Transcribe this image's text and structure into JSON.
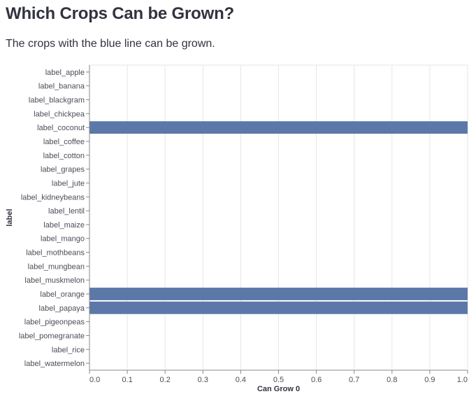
{
  "header": {
    "title": "Which Crops Can be Grown?",
    "subtitle": "The crops with the blue line can be grown."
  },
  "colors": {
    "bar": "#5b78a8",
    "grid": "#e6e6e6",
    "axis": "#888888",
    "text": "#31333f"
  },
  "chart_data": {
    "type": "bar",
    "orientation": "horizontal",
    "title": "",
    "xlabel": "Can Grow 0",
    "ylabel": "label",
    "xlim": [
      0,
      1
    ],
    "x_ticks": [
      "0.0",
      "0.1",
      "0.2",
      "0.3",
      "0.4",
      "0.5",
      "0.6",
      "0.7",
      "0.8",
      "0.9",
      "1.0"
    ],
    "grid": true,
    "categories": [
      "label_apple",
      "label_banana",
      "label_blackgram",
      "label_chickpea",
      "label_coconut",
      "label_coffee",
      "label_cotton",
      "label_grapes",
      "label_jute",
      "label_kidneybeans",
      "label_lentil",
      "label_maize",
      "label_mango",
      "label_mothbeans",
      "label_mungbean",
      "label_muskmelon",
      "label_orange",
      "label_papaya",
      "label_pigeonpeas",
      "label_pomegranate",
      "label_rice",
      "label_watermelon"
    ],
    "values": [
      0,
      0,
      0,
      0,
      1,
      0,
      0,
      0,
      0,
      0,
      0,
      0,
      0,
      0,
      0,
      0,
      1,
      1,
      0,
      0,
      0,
      0
    ]
  }
}
